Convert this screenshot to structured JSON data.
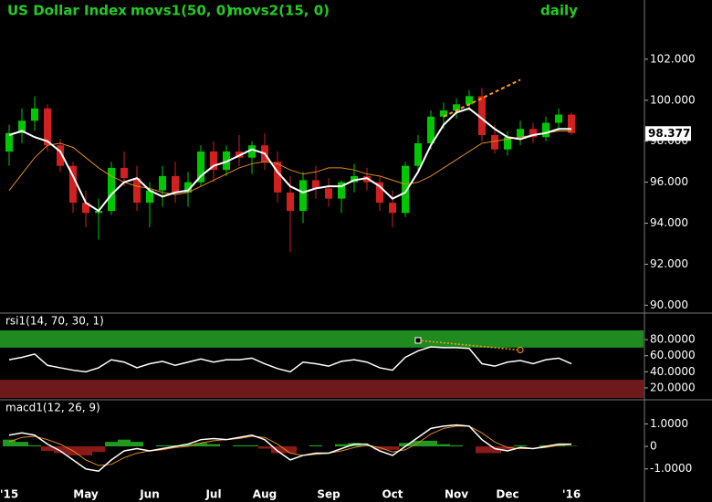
{
  "chart_data": [
    {
      "type": "candlestick",
      "title": "US Dollar Index",
      "subtitle": "daily",
      "title_color": "#22cc22",
      "up_color": "#00c800",
      "down_color": "#d02020",
      "open": [
        97.5,
        98.4,
        99.0,
        99.6,
        97.8,
        96.8,
        95.0,
        94.5,
        94.6,
        96.7,
        96.2,
        95.0,
        95.6,
        96.3,
        95.5,
        96.0,
        97.5,
        96.6,
        97.5,
        97.2,
        97.8,
        97.0,
        95.5,
        94.6,
        96.1,
        95.7,
        95.2,
        96.0,
        96.3,
        96.0,
        95.0,
        94.5,
        96.8,
        97.9,
        99.2,
        99.5,
        99.8,
        100.2,
        98.3,
        97.6,
        98.2,
        98.6,
        98.2,
        98.9,
        99.3
      ],
      "high": [
        98.8,
        99.6,
        100.2,
        99.8,
        98.1,
        97.0,
        95.6,
        95.2,
        97.0,
        97.5,
        96.8,
        96.0,
        96.8,
        97.0,
        96.5,
        97.8,
        98.0,
        97.8,
        98.3,
        98.0,
        98.4,
        97.5,
        96.3,
        96.5,
        96.8,
        96.2,
        96.1,
        96.9,
        96.7,
        96.3,
        95.6,
        97.0,
        98.3,
        99.5,
        99.9,
        100.1,
        100.5,
        100.6,
        98.8,
        98.5,
        99.0,
        98.9,
        99.2,
        99.6,
        99.4
      ],
      "low": [
        96.8,
        97.9,
        98.5,
        97.5,
        96.5,
        94.5,
        93.8,
        93.2,
        94.4,
        95.8,
        94.6,
        93.8,
        94.8,
        95.0,
        94.8,
        95.8,
        96.0,
        96.3,
        96.8,
        96.4,
        96.6,
        95.0,
        92.6,
        94.0,
        95.2,
        94.8,
        94.5,
        95.5,
        95.6,
        94.6,
        93.8,
        94.3,
        96.5,
        97.6,
        98.6,
        99.1,
        99.5,
        98.0,
        97.4,
        97.3,
        97.8,
        97.9,
        98.0,
        98.5,
        98.3
      ],
      "close": [
        98.4,
        99.0,
        99.6,
        97.8,
        96.8,
        95.0,
        94.5,
        94.6,
        96.7,
        96.2,
        95.0,
        95.6,
        96.3,
        95.5,
        96.0,
        97.5,
        96.6,
        97.5,
        97.2,
        97.8,
        97.0,
        95.5,
        94.6,
        96.1,
        95.7,
        95.2,
        96.0,
        96.3,
        96.0,
        95.0,
        94.5,
        96.8,
        97.9,
        99.2,
        99.5,
        99.8,
        100.2,
        98.3,
        97.6,
        98.2,
        98.6,
        98.2,
        98.9,
        99.3,
        98.4
      ],
      "series": [
        {
          "name": "movs1(50, 0)",
          "color": "#e08a1e",
          "values": [
            95.6,
            96.4,
            97.2,
            97.8,
            97.9,
            97.7,
            97.2,
            96.7,
            96.3,
            96.0,
            95.8,
            95.7,
            95.5,
            95.4,
            95.5,
            95.8,
            96.1,
            96.4,
            96.7,
            96.9,
            97.0,
            96.9,
            96.6,
            96.4,
            96.5,
            96.7,
            96.7,
            96.6,
            96.4,
            96.3,
            96.1,
            95.9,
            96.0,
            96.3,
            96.7,
            97.1,
            97.5,
            97.9,
            98.0,
            98.1,
            98.2,
            98.3,
            98.4,
            98.5,
            98.5
          ]
        },
        {
          "name": "movs2(15, 0)",
          "color": "#ffffff",
          "values": [
            98.3,
            98.5,
            98.2,
            98.0,
            97.5,
            96.3,
            95.0,
            94.6,
            95.4,
            96.0,
            96.2,
            95.6,
            95.3,
            95.5,
            95.6,
            96.3,
            96.8,
            97.0,
            97.3,
            97.6,
            97.4,
            96.5,
            95.8,
            95.5,
            95.7,
            95.8,
            95.8,
            96.1,
            96.2,
            95.8,
            95.2,
            95.5,
            96.5,
            97.8,
            98.8,
            99.4,
            99.6,
            99.1,
            98.6,
            98.2,
            98.1,
            98.3,
            98.4,
            98.6,
            98.6
          ]
        }
      ],
      "last_value": 98.377,
      "last_label": "98.377",
      "trendline": {
        "x": [
          34,
          40
        ],
        "y": [
          99.2,
          101.0
        ],
        "color": "#ff9a20"
      },
      "ylim": [
        89.75,
        104.0
      ],
      "yticks": [
        {
          "value": 90,
          "label": "90.000"
        },
        {
          "value": 92,
          "label": "92.000"
        },
        {
          "value": 94,
          "label": "94.000"
        },
        {
          "value": 96,
          "label": "96.000"
        },
        {
          "value": 98,
          "label": "98.000"
        },
        {
          "value": 100,
          "label": "100.000"
        },
        {
          "value": 102,
          "label": "102.000"
        }
      ]
    },
    {
      "type": "line",
      "title": "rsi1(14, 70, 30, 1)",
      "color": "#ffffff",
      "values": [
        55,
        58,
        62,
        48,
        45,
        42,
        40,
        45,
        55,
        52,
        45,
        50,
        53,
        48,
        52,
        56,
        52,
        55,
        55,
        57,
        50,
        44,
        40,
        52,
        50,
        47,
        53,
        55,
        52,
        45,
        42,
        58,
        66,
        71,
        70,
        70,
        69,
        50,
        47,
        52,
        54,
        50,
        55,
        57,
        50
      ],
      "overbought": 70,
      "oversold": 30,
      "overbought_color": "#1f8a1f",
      "oversold_color": "#6e1a1c",
      "trendline": {
        "x": [
          32,
          40
        ],
        "y": [
          79,
          67
        ],
        "color": "#ff9a20"
      },
      "ylim": [
        7.5,
        91.4
      ],
      "yticks": [
        {
          "value": 20,
          "label": "20.0000"
        },
        {
          "value": 40,
          "label": "40.0000"
        },
        {
          "value": 60,
          "label": "60.0000"
        },
        {
          "value": 80,
          "label": "80.0000"
        }
      ]
    },
    {
      "type": "macd",
      "title": "macd1(12, 26, 9)",
      "categories": [
        "'15",
        null,
        null,
        null,
        null,
        null,
        "May",
        null,
        null,
        null,
        null,
        "Jun",
        null,
        null,
        null,
        null,
        "Jul",
        null,
        null,
        null,
        "Aug",
        null,
        null,
        null,
        null,
        "Sep",
        null,
        null,
        null,
        null,
        "Oct",
        null,
        null,
        null,
        null,
        "Nov",
        null,
        null,
        null,
        "Dec",
        null,
        null,
        null,
        null,
        "'16"
      ],
      "macd": [
        0.5,
        0.6,
        0.5,
        0.1,
        -0.2,
        -0.6,
        -1.0,
        -1.1,
        -0.6,
        -0.2,
        -0.1,
        -0.2,
        -0.1,
        0.0,
        0.1,
        0.3,
        0.35,
        0.3,
        0.4,
        0.5,
        0.3,
        -0.2,
        -0.6,
        -0.4,
        -0.3,
        -0.3,
        -0.1,
        0.1,
        0.1,
        -0.2,
        -0.4,
        0.0,
        0.4,
        0.8,
        0.9,
        0.95,
        0.9,
        0.3,
        -0.1,
        -0.2,
        -0.05,
        -0.1,
        0.0,
        0.1,
        0.1
      ],
      "signal": [
        0.2,
        0.4,
        0.45,
        0.3,
        0.1,
        -0.2,
        -0.6,
        -0.85,
        -0.8,
        -0.5,
        -0.3,
        -0.2,
        -0.15,
        -0.05,
        0.0,
        0.15,
        0.25,
        0.3,
        0.35,
        0.45,
        0.4,
        0.1,
        -0.3,
        -0.4,
        -0.35,
        -0.3,
        -0.2,
        -0.05,
        0.05,
        -0.05,
        -0.25,
        -0.15,
        0.15,
        0.55,
        0.8,
        0.9,
        0.9,
        0.6,
        0.2,
        -0.05,
        -0.1,
        -0.1,
        -0.05,
        0.05,
        0.08
      ],
      "histogram": [
        0.3,
        0.2,
        0.05,
        -0.2,
        -0.3,
        -0.4,
        -0.4,
        -0.25,
        0.2,
        0.3,
        0.2,
        0,
        0.05,
        0.05,
        0.1,
        0.15,
        0.1,
        0,
        0.05,
        0.05,
        -0.1,
        -0.3,
        -0.3,
        0,
        0.05,
        0,
        0.1,
        0.15,
        0.05,
        -0.15,
        -0.15,
        0.15,
        0.25,
        0.25,
        0.1,
        0.05,
        0,
        -0.3,
        -0.3,
        -0.15,
        0.05,
        0,
        0.05,
        0.05,
        0.02
      ],
      "macd_color": "#ffffff",
      "signal_color": "#e08a1e",
      "pos_color": "#1f9a1f",
      "neg_color": "#8a1a1a",
      "ylim": [
        -1.74,
        1.26
      ],
      "yticks": [
        {
          "value": -1,
          "label": "-1.0000"
        },
        0,
        {
          "value": 1,
          "label": "1.0000"
        }
      ]
    }
  ]
}
